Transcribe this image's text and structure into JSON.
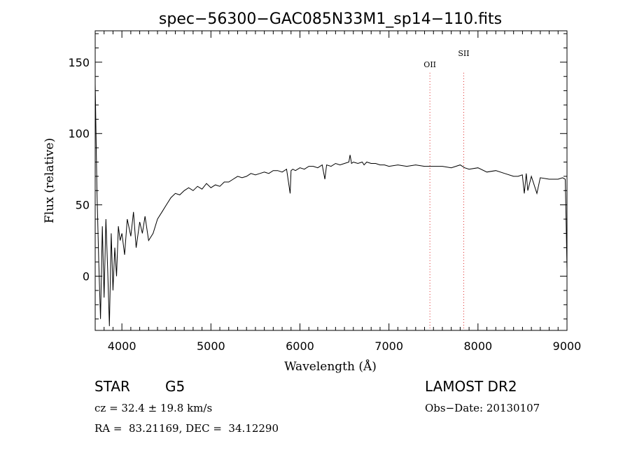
{
  "chart_data": {
    "type": "line",
    "title": "spec−56300−GAC085N33M1_sp14−110.fits",
    "xlabel": "Wavelength (Å)",
    "ylabel": "Flux (relative)",
    "xlim": [
      3700,
      9000
    ],
    "ylim": [
      -38,
      172
    ],
    "x_ticks": [
      4000,
      5000,
      6000,
      7000,
      8000,
      9000
    ],
    "y_ticks": [
      0,
      50,
      100,
      150
    ],
    "grid": false,
    "line_color": "#000000",
    "series": [
      {
        "x": [
          3700,
          3720,
          3740,
          3760,
          3780,
          3800,
          3820,
          3840,
          3860,
          3880,
          3900,
          3920,
          3940,
          3960,
          3980,
          4000,
          4030,
          4060,
          4100,
          4130,
          4160,
          4200,
          4230,
          4260,
          4300,
          4350,
          4400,
          4450,
          4500,
          4550,
          4600,
          4650,
          4700,
          4750,
          4800,
          4850,
          4900,
          4950,
          5000,
          5050,
          5100,
          5150,
          5200,
          5250,
          5300,
          5350,
          5400,
          5450,
          5500,
          5550,
          5600,
          5650,
          5700,
          5750,
          5800,
          5850,
          5890,
          5900,
          5920,
          5950,
          6000,
          6050,
          6100,
          6150,
          6200,
          6250,
          6280,
          6300,
          6350,
          6400,
          6450,
          6500,
          6550,
          6563,
          6580,
          6600,
          6650,
          6700,
          6720,
          6750,
          6800,
          6850,
          6900,
          6950,
          7000,
          7100,
          7200,
          7300,
          7400,
          7500,
          7600,
          7700,
          7800,
          7850,
          7900,
          8000,
          8100,
          8200,
          8300,
          8400,
          8450,
          8498,
          8520,
          8542,
          8560,
          8600,
          8662,
          8700,
          8800,
          8900,
          8950,
          8980,
          8990,
          9000
        ],
        "y": [
          135,
          60,
          10,
          -30,
          35,
          -15,
          40,
          5,
          -35,
          30,
          -10,
          20,
          0,
          35,
          25,
          30,
          15,
          40,
          28,
          45,
          20,
          38,
          30,
          42,
          25,
          30,
          40,
          45,
          50,
          55,
          58,
          57,
          60,
          62,
          60,
          63,
          61,
          65,
          62,
          64,
          63,
          66,
          66,
          68,
          70,
          69,
          70,
          72,
          71,
          72,
          73,
          72,
          74,
          74,
          73,
          75,
          58,
          74,
          75,
          74,
          76,
          75,
          77,
          77,
          76,
          78,
          68,
          78,
          77,
          79,
          78,
          79,
          80,
          85,
          79,
          80,
          79,
          80,
          78,
          80,
          79,
          79,
          78,
          78,
          77,
          78,
          77,
          78,
          77,
          77,
          77,
          76,
          78,
          76,
          75,
          76,
          73,
          74,
          72,
          70,
          70,
          71,
          58,
          72,
          60,
          70,
          58,
          69,
          68,
          68,
          69,
          68,
          40,
          5
        ]
      }
    ],
    "annotations": [
      {
        "label": "OII",
        "x": 7460
      },
      {
        "label": "SII",
        "x": 7840
      }
    ]
  },
  "info": {
    "class_label": "STAR",
    "subclass": "G5",
    "survey": "LAMOST DR2",
    "cz_text": "cz = 32.4 ± 19.8 km/s",
    "obsdate_text": "Obs−Date: 20130107",
    "radec_text": "RA =  83.21169, DEC =  34.12290"
  }
}
